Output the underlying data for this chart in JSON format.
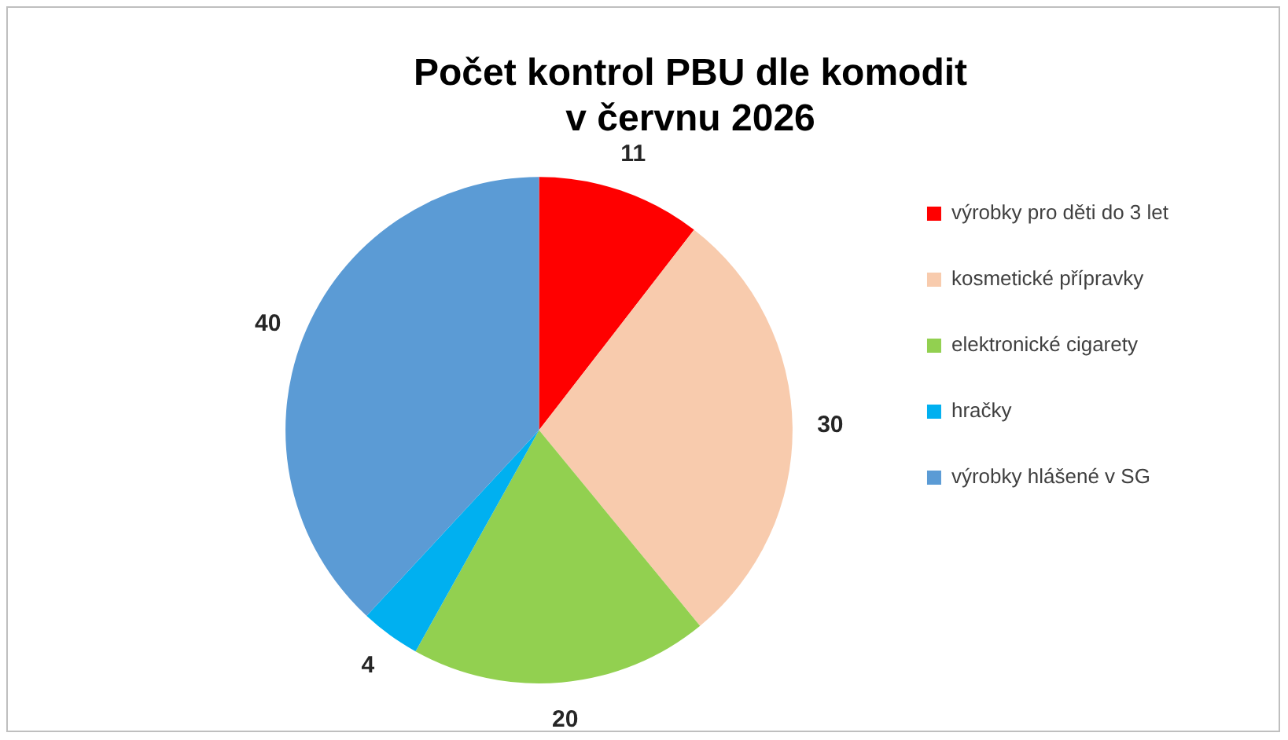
{
  "chart_data": {
    "type": "pie",
    "title": "Počet kontrol PBU dle komodit\nv červnu 2026",
    "categories": [
      "výrobky pro děti do 3 let",
      "kosmetické přípravky",
      "elektronické cigarety",
      "hračky",
      "výrobky hlášené v SG"
    ],
    "values": [
      11,
      30,
      20,
      4,
      40
    ],
    "colors": [
      "#ff0000",
      "#f8cbad",
      "#92d050",
      "#00b0f0",
      "#5b9bd5"
    ],
    "data_labels": true,
    "legend": "right"
  }
}
